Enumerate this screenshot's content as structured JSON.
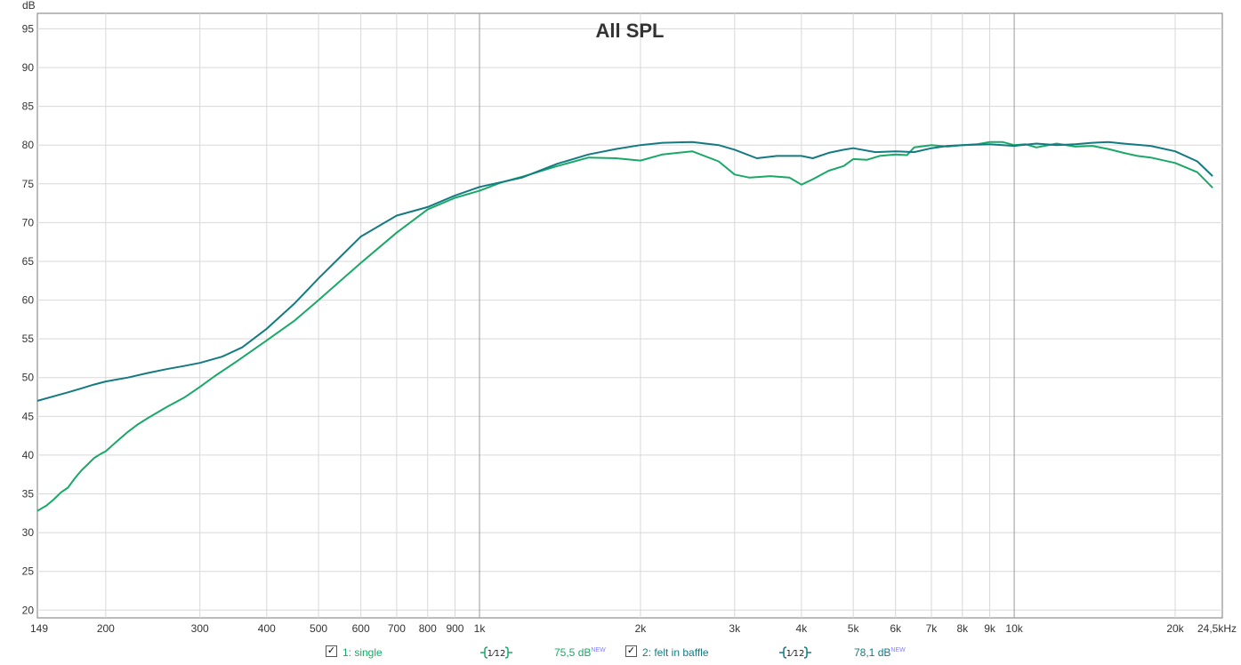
{
  "chart_data": {
    "type": "line",
    "title": "All SPL",
    "ylabel": "dB",
    "xlabel": "",
    "x_scale": "log",
    "xlim": [
      149,
      24500
    ],
    "ylim": [
      19,
      97
    ],
    "grid": true,
    "y_ticks": [
      20,
      25,
      30,
      35,
      40,
      45,
      50,
      55,
      60,
      65,
      70,
      75,
      80,
      85,
      90,
      95
    ],
    "x_ticks": [
      {
        "value": 149,
        "label": "149"
      },
      {
        "value": 200,
        "label": "200"
      },
      {
        "value": 300,
        "label": "300"
      },
      {
        "value": 400,
        "label": "400"
      },
      {
        "value": 500,
        "label": "500"
      },
      {
        "value": 600,
        "label": "600"
      },
      {
        "value": 700,
        "label": "700"
      },
      {
        "value": 800,
        "label": "800"
      },
      {
        "value": 900,
        "label": "900"
      },
      {
        "value": 1000,
        "label": "1k"
      },
      {
        "value": 2000,
        "label": "2k"
      },
      {
        "value": 3000,
        "label": "3k"
      },
      {
        "value": 4000,
        "label": "4k"
      },
      {
        "value": 5000,
        "label": "5k"
      },
      {
        "value": 6000,
        "label": "6k"
      },
      {
        "value": 7000,
        "label": "7k"
      },
      {
        "value": 8000,
        "label": "8k"
      },
      {
        "value": 9000,
        "label": "9k"
      },
      {
        "value": 10000,
        "label": "10k"
      },
      {
        "value": 20000,
        "label": "20k"
      },
      {
        "value": 24500,
        "label": "24,5kHz"
      }
    ],
    "major_x_lines": [
      1000,
      10000
    ],
    "series": [
      {
        "name": "1: single",
        "color": "#1aa868",
        "x": [
          149,
          155,
          160,
          165,
          170,
          175,
          180,
          185,
          190,
          195,
          200,
          210,
          220,
          230,
          240,
          260,
          280,
          290,
          300,
          320,
          350,
          400,
          450,
          500,
          600,
          700,
          800,
          900,
          1000,
          1100,
          1200,
          1400,
          1600,
          1800,
          2000,
          2200,
          2500,
          2800,
          3000,
          3200,
          3500,
          3800,
          4000,
          4200,
          4500,
          4800,
          5000,
          5300,
          5600,
          6000,
          6300,
          6500,
          7000,
          7500,
          8000,
          8500,
          9000,
          9500,
          10000,
          10500,
          11000,
          12000,
          13000,
          14000,
          15000,
          16000,
          17000,
          18000,
          20000,
          22000,
          23500
        ],
        "values": [
          32.8,
          33.5,
          34.3,
          35.2,
          35.8,
          37.0,
          38.0,
          38.8,
          39.6,
          40.1,
          40.5,
          41.8,
          43.0,
          44.0,
          44.8,
          46.2,
          47.4,
          48.1,
          48.8,
          50.2,
          52.0,
          54.8,
          57.3,
          60.0,
          64.8,
          68.7,
          71.7,
          73.2,
          74.1,
          75.2,
          75.9,
          77.3,
          78.4,
          78.3,
          78.0,
          78.8,
          79.2,
          77.9,
          76.2,
          75.8,
          76.0,
          75.8,
          74.9,
          75.6,
          76.7,
          77.3,
          78.2,
          78.1,
          78.6,
          78.8,
          78.7,
          79.7,
          80.0,
          79.8,
          80.0,
          80.1,
          80.4,
          80.4,
          80.0,
          80.1,
          79.7,
          80.2,
          79.8,
          79.9,
          79.5,
          79.0,
          78.6,
          78.4,
          77.7,
          76.5,
          74.5
        ]
      },
      {
        "name": "2: felt in baffle",
        "color": "#147a82",
        "x": [
          149,
          160,
          170,
          180,
          190,
          200,
          220,
          240,
          260,
          280,
          300,
          330,
          360,
          400,
          450,
          500,
          600,
          700,
          800,
          900,
          1000,
          1200,
          1400,
          1600,
          1800,
          2000,
          2200,
          2500,
          2800,
          3000,
          3300,
          3600,
          4000,
          4200,
          4500,
          4800,
          5000,
          5500,
          6000,
          6500,
          7000,
          7500,
          8000,
          9000,
          10000,
          11000,
          12000,
          13000,
          14000,
          15000,
          16000,
          18000,
          20000,
          22000,
          23500
        ],
        "values": [
          47.0,
          47.6,
          48.1,
          48.6,
          49.1,
          49.5,
          50.0,
          50.6,
          51.1,
          51.5,
          51.9,
          52.7,
          53.9,
          56.3,
          59.5,
          62.8,
          68.2,
          70.9,
          72.0,
          73.5,
          74.6,
          75.8,
          77.6,
          78.8,
          79.5,
          80.0,
          80.3,
          80.4,
          80.0,
          79.4,
          78.3,
          78.6,
          78.6,
          78.3,
          79.0,
          79.4,
          79.6,
          79.1,
          79.2,
          79.1,
          79.6,
          79.9,
          80.0,
          80.1,
          79.9,
          80.2,
          80.0,
          80.1,
          80.3,
          80.4,
          80.2,
          79.9,
          79.2,
          77.9,
          76.0
        ]
      }
    ]
  },
  "legend": {
    "items": [
      {
        "label": "1: single",
        "checked": "✓",
        "smoothing": "1⁄12",
        "level": "75,5 dB",
        "level_tag": "NEW",
        "color": "#1aa868"
      },
      {
        "label": "2: felt in baffle",
        "checked": "✓",
        "smoothing": "1⁄12",
        "level": "78,1 dB",
        "level_tag": "NEW",
        "color": "#147a82"
      }
    ]
  }
}
